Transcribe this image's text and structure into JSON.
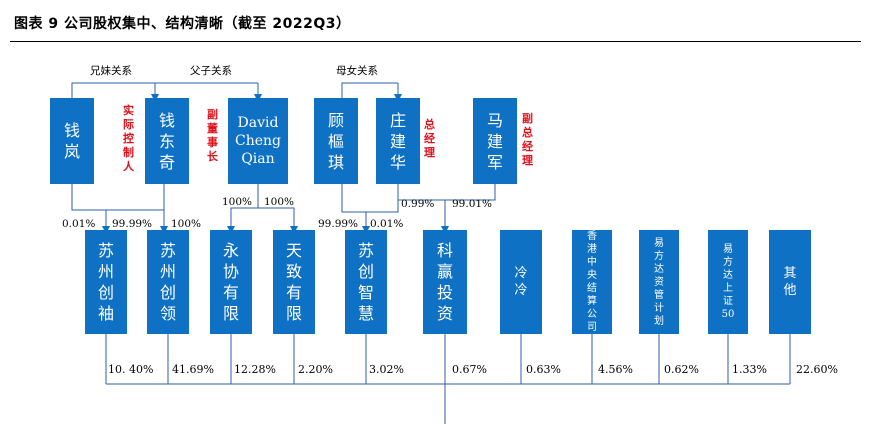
{
  "title": "图表 9 公司股权集中、结构清晰（截至 2022Q3）",
  "relations": {
    "siblings": "兄妹关系",
    "father_son": "父子关系",
    "mother_daughter": "母女关系"
  },
  "holders": {
    "qian_lan": "钱\n岚",
    "qian_dongqi": "钱\n东\n奇",
    "david": "David\nCheng\nQian",
    "gu": "顾\n樞\n琪",
    "zhuang": "庄\n建\n华",
    "ma": "马\n建\n军"
  },
  "roles": {
    "qian_dongqi": "实\n际\n控\n制\n人",
    "david": "副\n董\n事\n长",
    "zhuang": "总\n经\n理",
    "ma": "副\n总\n经\n理"
  },
  "edge_labels": {
    "lan_to_chuangxiu": "0.01%",
    "dongqi_to_chuangxiu": "99.99%",
    "dongqi_to_chuangling": "100%",
    "david_to_yongxie": "100%",
    "david_to_tianzhi": "100%",
    "gu_to_chuangzhi": "99.99%",
    "zhuang_to_chuangzhi": "0.01%",
    "zhuang_to_keying": "0.99%",
    "ma_to_keying": "99.01%"
  },
  "shareholders": [
    {
      "name": "苏\n州\n创\n袖",
      "pct": "10. 40%"
    },
    {
      "name": "苏\n州\n创\n领",
      "pct": "41.69%"
    },
    {
      "name": "永\n协\n有\n限",
      "pct": "12.28%"
    },
    {
      "name": "天\n致\n有\n限",
      "pct": "2.20%"
    },
    {
      "name": "苏\n创\n智\n慧",
      "pct": "3.02%"
    },
    {
      "name": "科\n赢\n投\n资",
      "pct": "0.67%"
    },
    {
      "name": "冷\n冷",
      "pct": "0.63%"
    },
    {
      "name": "香\n港\n中\n央\n结\n算\n公\n司",
      "pct": "4.56%"
    },
    {
      "name": "易\n方\n达\n资\n管\n计\n划",
      "pct": "0.62%"
    },
    {
      "name": "易\n方\n达\n上\n证\n50",
      "pct": "1.33%"
    },
    {
      "name": "其\n他",
      "pct": "22.60%"
    }
  ]
}
